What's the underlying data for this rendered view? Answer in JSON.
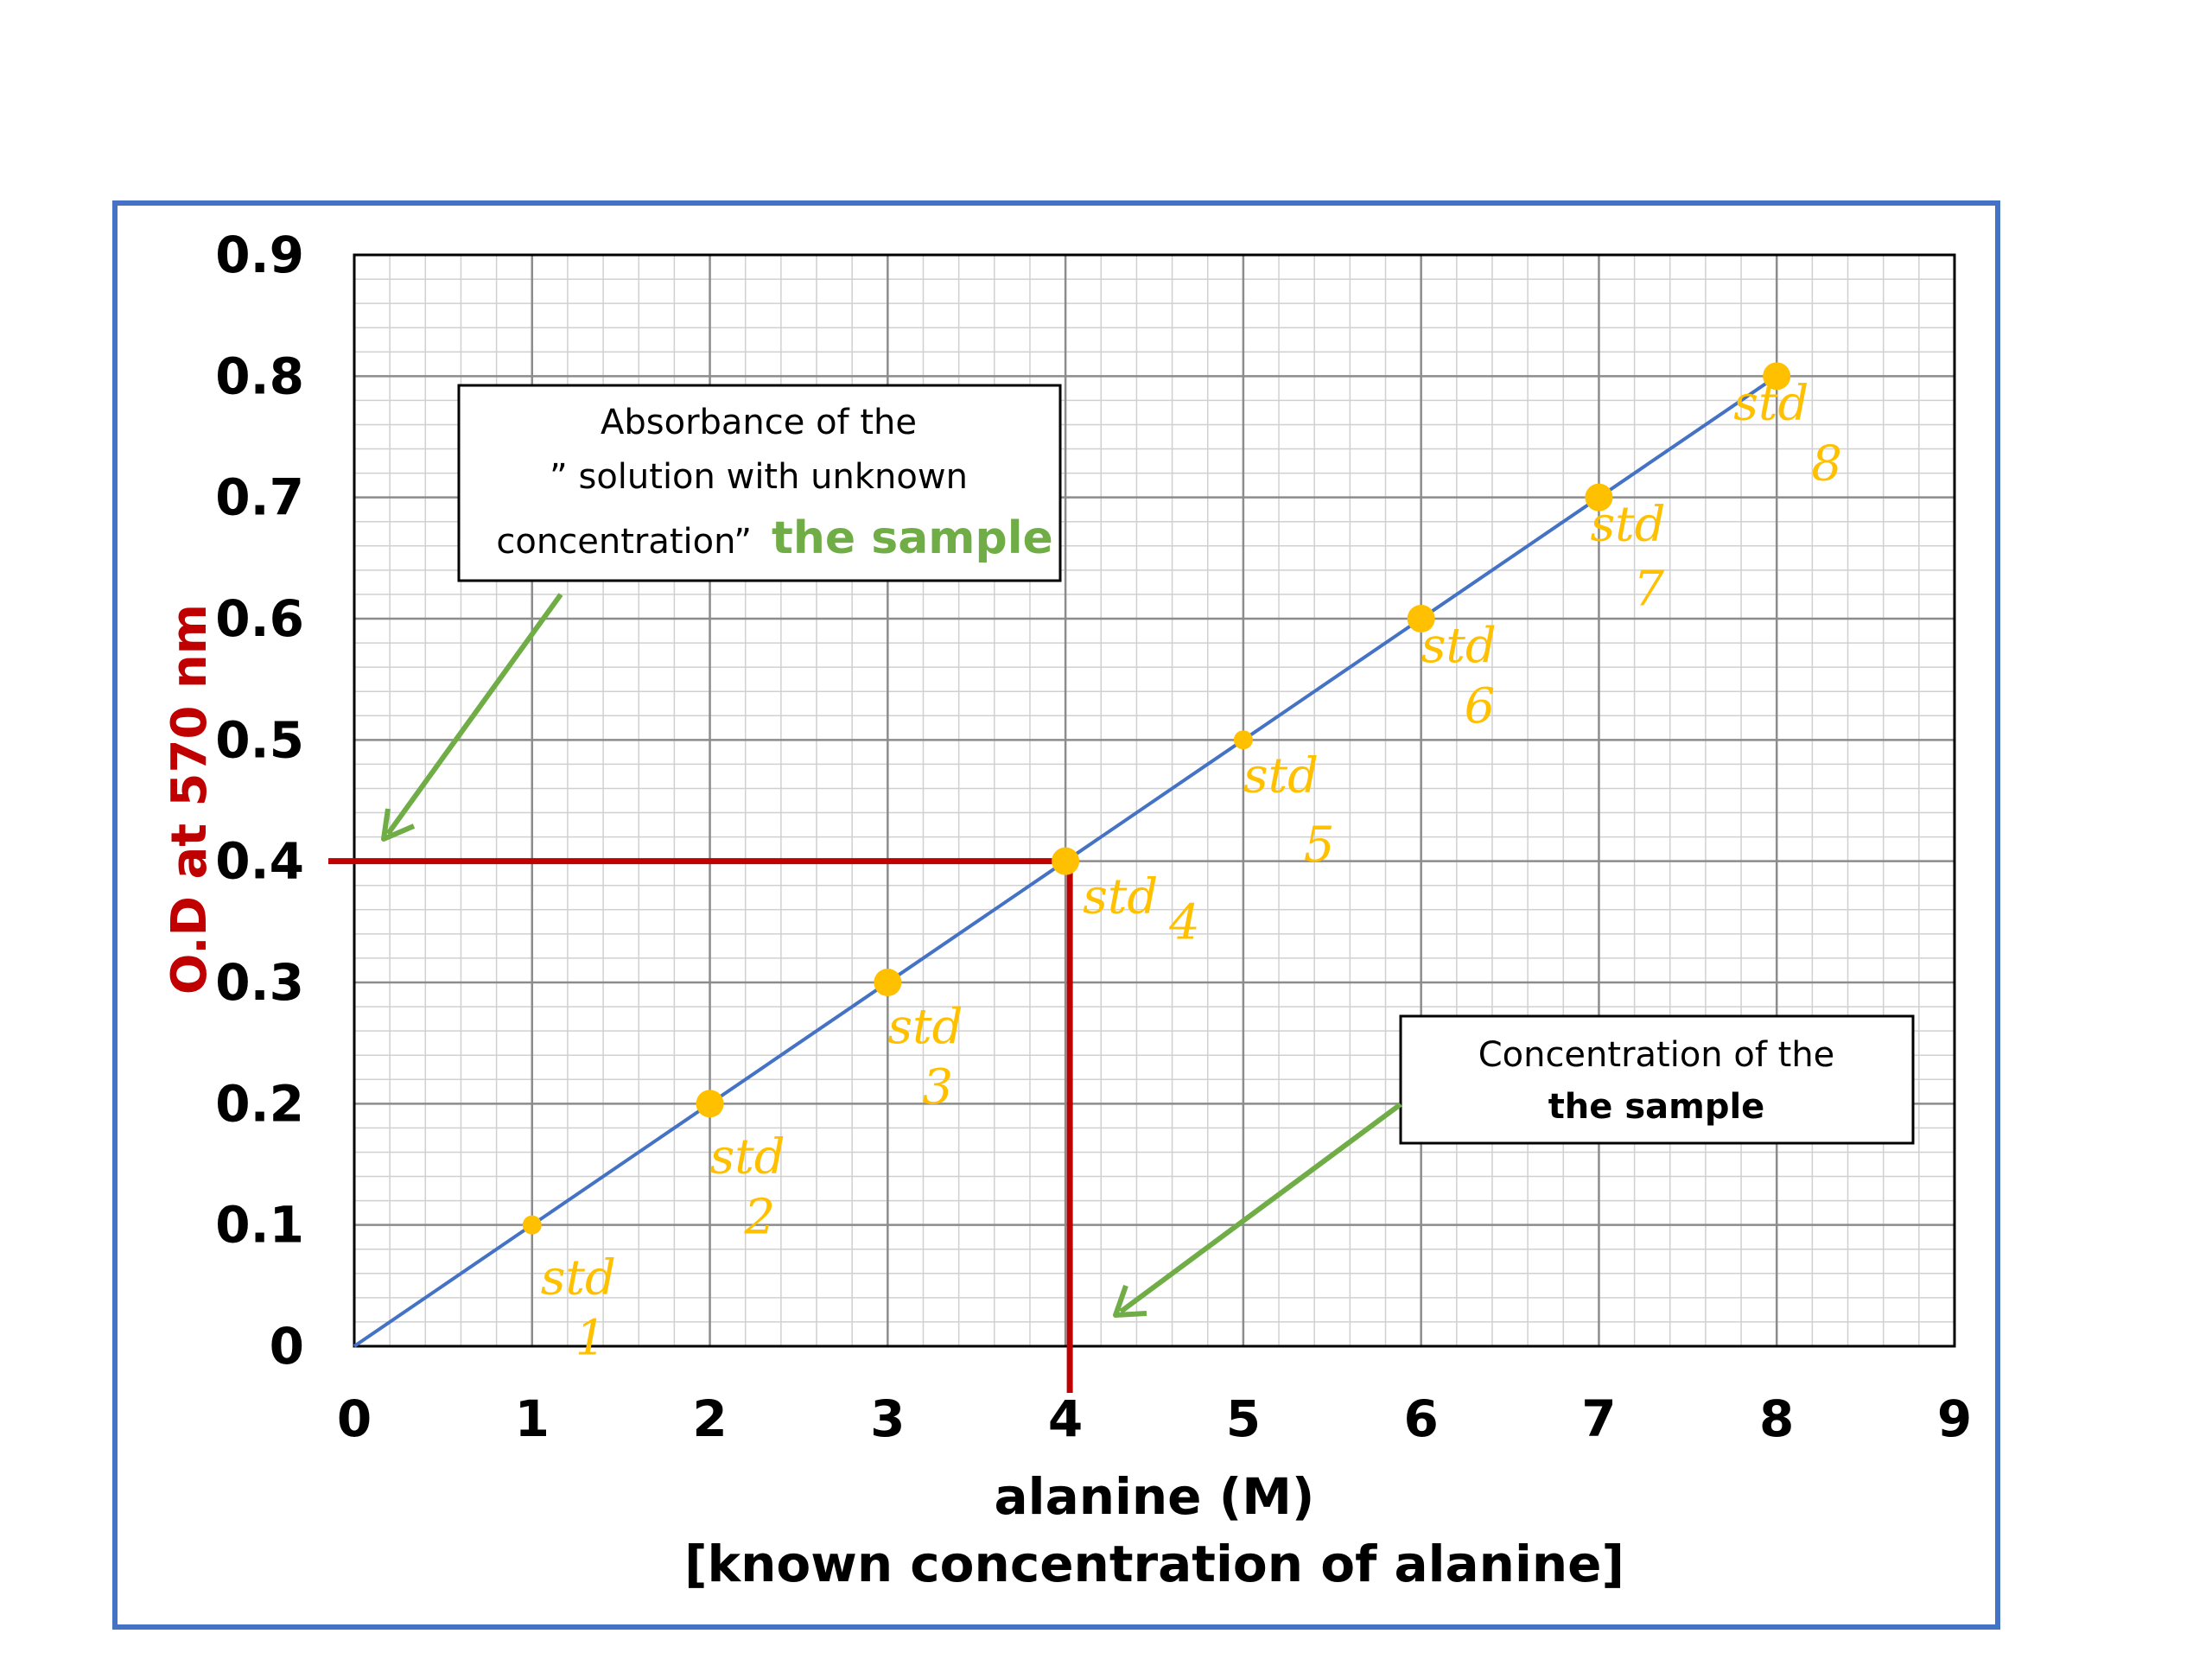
{
  "colors": {
    "frame": "#4472C4",
    "fit_line": "#4472C4",
    "point": "#FFC000",
    "highlight": "#C00000",
    "accent": "#70AD47",
    "grid_major": "#8C8C8C",
    "grid_minor": "#D0D0D0"
  },
  "callouts": {
    "absorbance": {
      "line1": "Absorbance of the",
      "line2": "” solution with unknown",
      "line3": "concentration”",
      "accent": "the sample"
    },
    "concentration": {
      "line1": "Concentration of the",
      "accent": "the sample"
    }
  },
  "chart_data": {
    "type": "scatter",
    "xlabel": "alanine (M)",
    "xlabel2": "[known concentration of alanine]",
    "ylabel": "O.D at 570 nm",
    "xlim": [
      0,
      9
    ],
    "ylim": [
      0,
      0.9
    ],
    "x_ticks": [
      "0",
      "1",
      "2",
      "3",
      "4",
      "5",
      "6",
      "7",
      "8",
      "9"
    ],
    "y_ticks": [
      "0",
      "0.1",
      "0.2",
      "0.3",
      "0.4",
      "0.5",
      "0.6",
      "0.7",
      "0.8",
      "0.9"
    ],
    "grid": true,
    "standards": [
      {
        "x": 1,
        "y": 0.1,
        "label": "std",
        "num": "1"
      },
      {
        "x": 2,
        "y": 0.2,
        "label": "std",
        "num": "2"
      },
      {
        "x": 3,
        "y": 0.3,
        "label": "std",
        "num": "3"
      },
      {
        "x": 4,
        "y": 0.4,
        "label": "std",
        "num": "4"
      },
      {
        "x": 5,
        "y": 0.5,
        "label": "std",
        "num": "5"
      },
      {
        "x": 6,
        "y": 0.6,
        "label": "std",
        "num": "6"
      },
      {
        "x": 7,
        "y": 0.7,
        "label": "std",
        "num": "7"
      },
      {
        "x": 8,
        "y": 0.8,
        "label": "std",
        "num": "8"
      }
    ],
    "fit_line": {
      "x": [
        0,
        8
      ],
      "y": [
        0,
        0.8
      ]
    },
    "sample": {
      "x": 4,
      "y": 0.4
    }
  }
}
